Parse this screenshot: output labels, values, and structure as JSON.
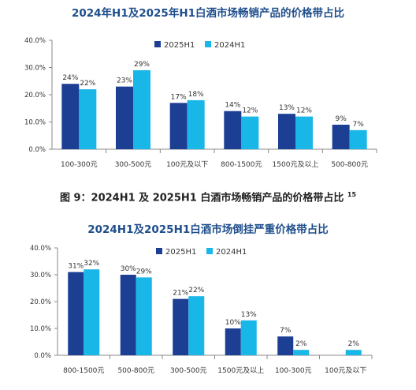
{
  "colors": {
    "series_2025": "#1c3f94",
    "series_2024": "#19b6e8",
    "title": "#1f4e8c"
  },
  "caption": {
    "text": "图 9：2024H1 及 2025H1 白酒市场畅销产品的价格带占比",
    "note": "15"
  },
  "chart_data": [
    {
      "type": "bar",
      "title": "2024年H1及2025年H1白酒市场畅销产品的价格带占比",
      "categories": [
        "100-300元",
        "300-500元",
        "100元及以下",
        "800-1500元",
        "1500元及以上",
        "500-800元"
      ],
      "series": [
        {
          "name": "2025H1",
          "values": [
            24,
            23,
            17,
            14,
            13,
            9
          ],
          "labels": [
            "24%",
            "23%",
            "17%",
            "14%",
            "13%",
            "9%"
          ]
        },
        {
          "name": "2024H1",
          "values": [
            22,
            29,
            18,
            12,
            12,
            7
          ],
          "labels": [
            "22%",
            "29%",
            "18%",
            "12%",
            "12%",
            "7%"
          ]
        }
      ],
      "ylim": [
        0,
        40
      ],
      "yticks": [
        "0.0%",
        "10.0%",
        "20.0%",
        "30.0%",
        "40.0%"
      ],
      "legend": "top-center",
      "grid": false
    },
    {
      "type": "bar",
      "title": "2024H1及2025H1白酒市场倒挂严重价格带占比",
      "categories": [
        "800-1500元",
        "500-800元",
        "300-500元",
        "1500元及以上",
        "100-300元",
        "100元及以下"
      ],
      "series": [
        {
          "name": "2025H1",
          "values": [
            31,
            30,
            21,
            10,
            7,
            0
          ],
          "labels": [
            "31%",
            "30%",
            "21%",
            "10%",
            "7%",
            ""
          ]
        },
        {
          "name": "2024H1",
          "values": [
            32,
            29,
            22,
            13,
            2,
            2
          ],
          "labels": [
            "32%",
            "29%",
            "22%",
            "13%",
            "2%",
            "2%"
          ]
        }
      ],
      "ylim": [
        0,
        40
      ],
      "yticks": [
        "0.0%",
        "10.0%",
        "20.0%",
        "30.0%",
        "40.0%"
      ],
      "legend": "top-center",
      "grid": false
    }
  ]
}
